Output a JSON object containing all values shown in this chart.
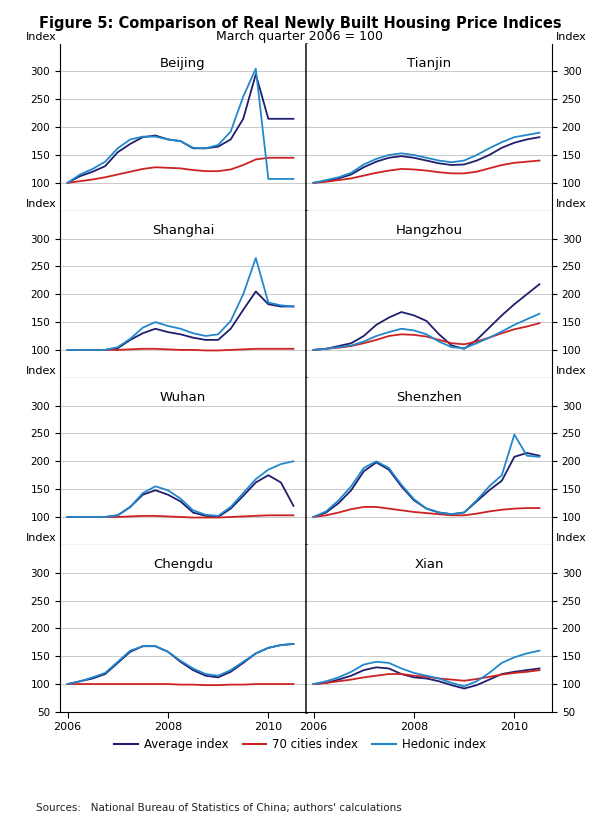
{
  "title": "Figure 5: Comparison of Real Newly Built Housing Price Indices",
  "subtitle": "March quarter 2006 = 100",
  "sources": "Sources:   National Bureau of Statistics of China; authors' calculations",
  "cities": [
    "Beijing",
    "Tianjin",
    "Shanghai",
    "Hangzhou",
    "Wuhan",
    "Shenzhen",
    "Chengdu",
    "Xian"
  ],
  "legend": [
    "Average index",
    "70 cities index",
    "Hedonic index"
  ],
  "colors": {
    "average": "#1f1f6e",
    "cities70": "#cc2222",
    "hedonic": "#2288cc"
  },
  "data": {
    "Beijing": {
      "x": [
        2006.0,
        2006.25,
        2006.5,
        2006.75,
        2007.0,
        2007.25,
        2007.5,
        2007.75,
        2008.0,
        2008.25,
        2008.5,
        2008.75,
        2009.0,
        2009.25,
        2009.5,
        2009.75,
        2010.0,
        2010.25,
        2010.5
      ],
      "average": [
        100,
        112,
        120,
        130,
        155,
        170,
        182,
        185,
        178,
        175,
        162,
        162,
        165,
        178,
        215,
        295,
        215,
        215,
        215
      ],
      "cities70": [
        100,
        103,
        106,
        110,
        115,
        120,
        125,
        128,
        127,
        126,
        123,
        121,
        121,
        124,
        132,
        142,
        145,
        145,
        145
      ],
      "hedonic": [
        100,
        115,
        125,
        138,
        162,
        178,
        183,
        183,
        178,
        175,
        163,
        162,
        168,
        192,
        255,
        305,
        107,
        107,
        107
      ]
    },
    "Tianjin": {
      "x": [
        2006.0,
        2006.25,
        2006.5,
        2006.75,
        2007.0,
        2007.25,
        2007.5,
        2007.75,
        2008.0,
        2008.25,
        2008.5,
        2008.75,
        2009.0,
        2009.25,
        2009.5,
        2009.75,
        2010.0,
        2010.25,
        2010.5
      ],
      "average": [
        100,
        103,
        108,
        115,
        128,
        138,
        145,
        148,
        145,
        140,
        135,
        132,
        133,
        140,
        150,
        163,
        172,
        178,
        182
      ],
      "cities70": [
        100,
        102,
        105,
        108,
        113,
        118,
        122,
        125,
        124,
        122,
        119,
        117,
        117,
        120,
        126,
        132,
        136,
        138,
        140
      ],
      "hedonic": [
        100,
        105,
        110,
        118,
        133,
        143,
        150,
        153,
        150,
        145,
        140,
        137,
        140,
        150,
        162,
        173,
        182,
        186,
        190
      ]
    },
    "Shanghai": {
      "x": [
        2006.0,
        2006.25,
        2006.5,
        2006.75,
        2007.0,
        2007.25,
        2007.5,
        2007.75,
        2008.0,
        2008.25,
        2008.5,
        2008.75,
        2009.0,
        2009.25,
        2009.5,
        2009.75,
        2010.0,
        2010.25,
        2010.5
      ],
      "average": [
        100,
        100,
        100,
        100,
        103,
        118,
        130,
        138,
        132,
        128,
        122,
        118,
        118,
        138,
        172,
        205,
        182,
        178,
        178
      ],
      "cities70": [
        100,
        100,
        100,
        100,
        100,
        101,
        102,
        102,
        101,
        100,
        100,
        99,
        99,
        100,
        101,
        102,
        102,
        102,
        102
      ],
      "hedonic": [
        100,
        100,
        100,
        100,
        105,
        120,
        140,
        150,
        143,
        138,
        130,
        125,
        128,
        152,
        200,
        265,
        185,
        180,
        178
      ]
    },
    "Hangzhou": {
      "x": [
        2006.0,
        2006.25,
        2006.5,
        2006.75,
        2007.0,
        2007.25,
        2007.5,
        2007.75,
        2008.0,
        2008.25,
        2008.5,
        2008.75,
        2009.0,
        2009.25,
        2009.5,
        2009.75,
        2010.0,
        2010.25,
        2010.5
      ],
      "average": [
        100,
        102,
        107,
        112,
        125,
        145,
        158,
        168,
        162,
        152,
        128,
        108,
        102,
        118,
        140,
        162,
        182,
        200,
        218
      ],
      "cities70": [
        100,
        102,
        104,
        107,
        112,
        118,
        125,
        128,
        127,
        124,
        118,
        112,
        110,
        115,
        122,
        130,
        137,
        142,
        148
      ],
      "hedonic": [
        100,
        102,
        105,
        108,
        115,
        125,
        132,
        138,
        135,
        128,
        115,
        105,
        103,
        112,
        122,
        133,
        145,
        155,
        165
      ]
    },
    "Wuhan": {
      "x": [
        2006.0,
        2006.25,
        2006.5,
        2006.75,
        2007.0,
        2007.25,
        2007.5,
        2007.75,
        2008.0,
        2008.25,
        2008.5,
        2008.75,
        2009.0,
        2009.25,
        2009.5,
        2009.75,
        2010.0,
        2010.25,
        2010.5
      ],
      "average": [
        100,
        100,
        100,
        100,
        103,
        118,
        140,
        148,
        140,
        128,
        108,
        102,
        100,
        115,
        138,
        162,
        175,
        162,
        120
      ],
      "cities70": [
        100,
        100,
        100,
        100,
        100,
        101,
        102,
        102,
        101,
        100,
        99,
        99,
        99,
        100,
        101,
        102,
        103,
        103,
        103
      ],
      "hedonic": [
        100,
        100,
        100,
        100,
        103,
        118,
        143,
        155,
        148,
        133,
        112,
        104,
        102,
        118,
        143,
        168,
        185,
        195,
        200
      ]
    },
    "Shenzhen": {
      "x": [
        2006.0,
        2006.25,
        2006.5,
        2006.75,
        2007.0,
        2007.25,
        2007.5,
        2007.75,
        2008.0,
        2008.25,
        2008.5,
        2008.75,
        2009.0,
        2009.25,
        2009.5,
        2009.75,
        2010.0,
        2010.25,
        2010.5
      ],
      "average": [
        100,
        108,
        125,
        148,
        182,
        198,
        185,
        155,
        130,
        115,
        108,
        105,
        108,
        128,
        148,
        165,
        208,
        215,
        210
      ],
      "cities70": [
        100,
        103,
        108,
        114,
        118,
        118,
        115,
        112,
        109,
        107,
        105,
        103,
        103,
        106,
        110,
        113,
        115,
        116,
        116
      ],
      "hedonic": [
        100,
        110,
        130,
        155,
        188,
        200,
        188,
        158,
        132,
        115,
        108,
        105,
        108,
        130,
        155,
        175,
        248,
        210,
        208
      ]
    },
    "Chengdu": {
      "x": [
        2006.0,
        2006.25,
        2006.5,
        2006.75,
        2007.0,
        2007.25,
        2007.5,
        2007.75,
        2008.0,
        2008.25,
        2008.5,
        2008.75,
        2009.0,
        2009.25,
        2009.5,
        2009.75,
        2010.0,
        2010.25,
        2010.5
      ],
      "average": [
        100,
        105,
        110,
        118,
        138,
        158,
        168,
        168,
        158,
        140,
        125,
        115,
        112,
        122,
        138,
        155,
        165,
        170,
        172
      ],
      "cities70": [
        100,
        100,
        100,
        100,
        100,
        100,
        100,
        100,
        100,
        99,
        99,
        98,
        98,
        99,
        99,
        100,
        100,
        100,
        100
      ],
      "hedonic": [
        100,
        105,
        112,
        120,
        140,
        160,
        168,
        168,
        158,
        142,
        128,
        118,
        115,
        125,
        140,
        155,
        165,
        170,
        172
      ]
    },
    "Xian": {
      "x": [
        2006.0,
        2006.25,
        2006.5,
        2006.75,
        2007.0,
        2007.25,
        2007.5,
        2007.75,
        2008.0,
        2008.25,
        2008.5,
        2008.75,
        2009.0,
        2009.25,
        2009.5,
        2009.75,
        2010.0,
        2010.25,
        2010.5
      ],
      "average": [
        100,
        102,
        108,
        115,
        125,
        130,
        128,
        118,
        112,
        110,
        105,
        98,
        92,
        98,
        108,
        118,
        122,
        125,
        128
      ],
      "cities70": [
        100,
        102,
        105,
        108,
        112,
        115,
        118,
        118,
        115,
        113,
        110,
        108,
        106,
        109,
        113,
        117,
        120,
        122,
        125
      ],
      "hedonic": [
        100,
        105,
        112,
        122,
        135,
        140,
        138,
        128,
        120,
        115,
        110,
        102,
        96,
        105,
        120,
        138,
        148,
        155,
        160
      ]
    }
  }
}
